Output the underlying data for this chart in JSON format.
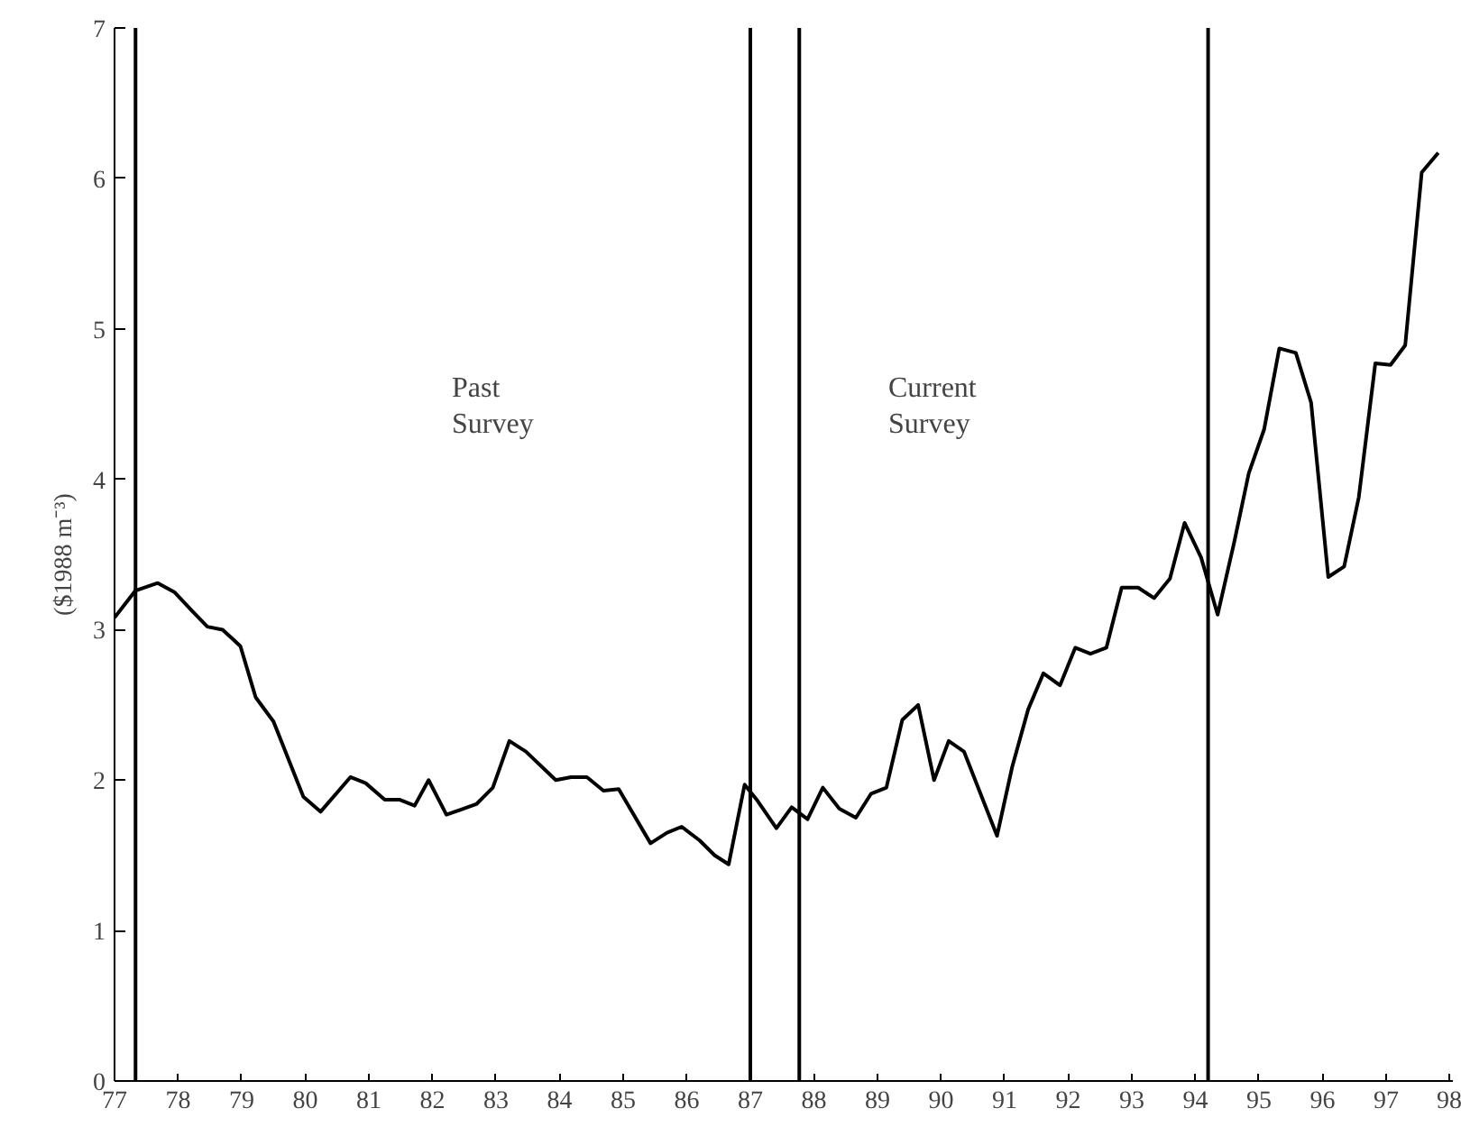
{
  "chart_data": {
    "type": "line",
    "ylabel": "($1988 m⁻³)",
    "x": [
      77,
      77.33,
      77.68,
      77.94,
      78.23,
      78.46,
      78.7,
      78.98,
      79.22,
      79.5,
      79.97,
      80.24,
      80.71,
      80.95,
      81.25,
      81.48,
      81.72,
      81.94,
      82.22,
      82.69,
      82.95,
      83.21,
      83.47,
      83.94,
      84.18,
      84.43,
      84.69,
      84.93,
      85.43,
      85.69,
      85.92,
      86.2,
      86.44,
      86.66,
      86.91,
      87.1,
      87.41,
      87.65,
      87.9,
      88.14,
      88.4,
      88.66,
      88.9,
      89.14,
      89.39,
      89.64,
      89.89,
      90.12,
      90.36,
      90.88,
      91.12,
      91.37,
      91.61,
      91.87,
      92.11,
      92.35,
      92.6,
      92.84,
      93.1,
      93.35,
      93.6,
      93.83,
      94.09,
      94.35,
      94.61,
      94.84,
      95.08,
      95.32,
      95.58,
      95.82,
      96.09,
      96.34,
      96.57,
      96.83,
      97.07,
      97.3,
      97.56,
      97.82
    ],
    "series": [
      {
        "color": "#000000",
        "values": [
          3.08,
          3.26,
          3.31,
          3.25,
          3.12,
          3.02,
          3.0,
          2.89,
          2.55,
          2.39,
          1.89,
          1.79,
          2.02,
          1.98,
          1.87,
          1.87,
          1.83,
          2.0,
          1.77,
          1.84,
          1.95,
          2.26,
          2.19,
          2.0,
          2.02,
          2.02,
          1.93,
          1.94,
          1.58,
          1.65,
          1.69,
          1.6,
          1.5,
          1.44,
          1.97,
          1.87,
          1.68,
          1.82,
          1.74,
          1.95,
          1.81,
          1.75,
          1.91,
          1.95,
          2.4,
          2.5,
          2.0,
          2.26,
          2.19,
          1.63,
          2.09,
          2.47,
          2.71,
          2.63,
          2.88,
          2.84,
          2.88,
          3.28,
          3.28,
          3.21,
          3.34,
          3.71,
          3.48,
          3.1,
          3.58,
          4.04,
          4.33,
          4.87,
          4.84,
          4.51,
          3.35,
          3.42,
          3.88,
          4.77,
          4.76,
          4.89,
          6.04,
          6.17
        ]
      }
    ],
    "xlim": [
      77,
      98.05
    ],
    "ylim": [
      0,
      7
    ],
    "xticks": [
      77,
      78,
      79,
      80,
      81,
      82,
      83,
      84,
      85,
      86,
      87,
      88,
      89,
      90,
      91,
      92,
      93,
      94,
      95,
      96,
      97,
      98
    ],
    "yticks": [
      0,
      1,
      2,
      3,
      4,
      5,
      6,
      7
    ],
    "ref_lines": [
      {
        "axis": "x",
        "value": 77.33,
        "color": "#000000"
      },
      {
        "axis": "x",
        "value": 87.0,
        "color": "#000000"
      },
      {
        "axis": "x",
        "value": 87.77,
        "color": "#000000"
      },
      {
        "axis": "x",
        "value": 94.2,
        "color": "#000000"
      }
    ],
    "annotations": [
      "Past\nSurvey",
      "Current\nSurvey"
    ],
    "grid": false,
    "marker": "none",
    "line_style": "solid"
  }
}
